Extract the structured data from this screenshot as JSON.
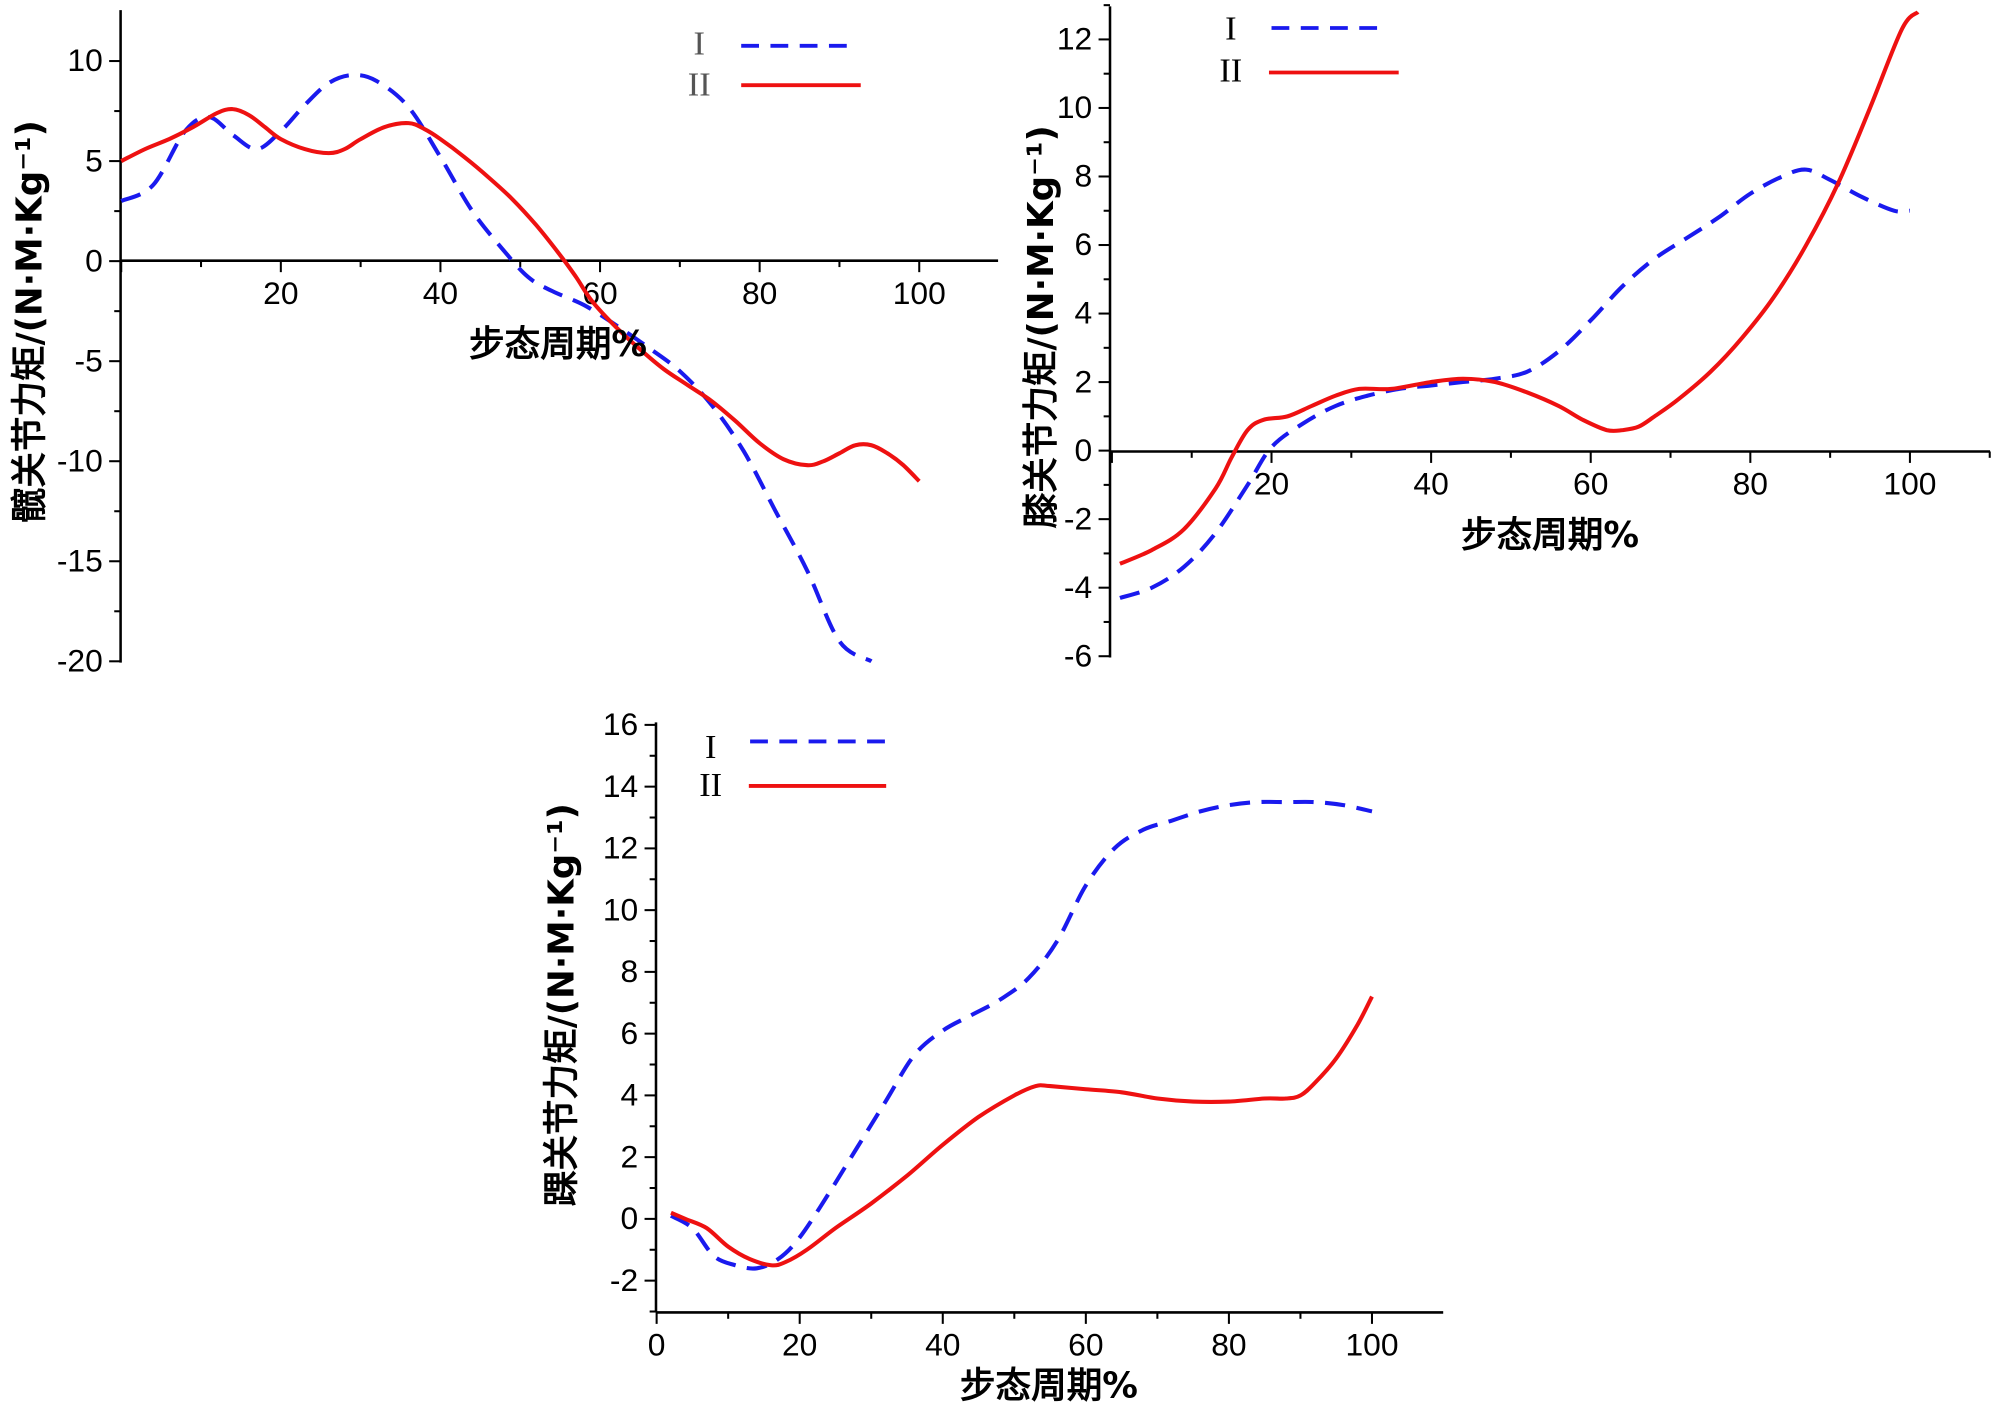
{
  "chart_data": [
    {
      "type": "line",
      "title": "",
      "xlabel": "步态周期%",
      "ylabel": "髋关节力矩/(N·M·Kg⁻¹)",
      "xlim": [
        0,
        110
      ],
      "ylim": [
        -20,
        12
      ],
      "xticks": [
        20,
        40,
        60,
        80,
        100
      ],
      "yticks": [
        10,
        5,
        0,
        -5,
        -10,
        -15,
        -20
      ],
      "ytick_labels": [
        "10",
        "5",
        "0",
        "-5",
        "-10",
        "-15",
        "-20"
      ],
      "legend": "top-right",
      "series": [
        {
          "name": "I",
          "style": "dashed",
          "color": "#1a1aee",
          "x": [
            0,
            4,
            8,
            11,
            14,
            17,
            20,
            23,
            26,
            29,
            32,
            36,
            40,
            44,
            48,
            51,
            54,
            58,
            62,
            66,
            70,
            74,
            78,
            82,
            86,
            90,
            94
          ],
          "y": [
            3.0,
            3.8,
            6.5,
            7.2,
            6.3,
            5.6,
            6.5,
            7.8,
            8.9,
            9.3,
            9.0,
            7.7,
            5.2,
            2.5,
            0.5,
            -0.8,
            -1.5,
            -2.2,
            -3.2,
            -4.3,
            -5.5,
            -7.2,
            -9.5,
            -12.5,
            -15.5,
            -19,
            -20
          ]
        },
        {
          "name": "II",
          "style": "solid",
          "color": "#ee1111",
          "x": [
            0,
            3,
            6,
            9,
            12,
            14,
            16,
            18,
            20,
            23,
            26,
            28,
            30,
            33,
            36,
            38,
            40,
            43,
            46,
            49,
            52,
            55,
            57,
            59,
            62,
            65,
            68,
            71,
            74,
            77,
            80,
            83,
            86,
            88,
            90,
            92,
            94,
            96,
            98,
            100
          ],
          "y": [
            5.0,
            5.6,
            6.1,
            6.7,
            7.4,
            7.6,
            7.3,
            6.7,
            6.1,
            5.6,
            5.4,
            5.6,
            6.1,
            6.7,
            6.9,
            6.6,
            6.1,
            5.2,
            4.2,
            3.1,
            1.8,
            0.3,
            -0.8,
            -2.0,
            -3.3,
            -4.4,
            -5.4,
            -6.2,
            -7.0,
            -8.0,
            -9.1,
            -9.9,
            -10.2,
            -10.0,
            -9.6,
            -9.2,
            -9.2,
            -9.6,
            -10.2,
            -11.0
          ]
        }
      ]
    },
    {
      "type": "line",
      "title": "",
      "xlabel": "步态周期%",
      "ylabel": "膝关节力矩/(N·M·Kg⁻¹)",
      "xlim": [
        0,
        110
      ],
      "ylim": [
        -6,
        13
      ],
      "xticks": [
        20,
        40,
        60,
        80,
        100
      ],
      "yticks": [
        12,
        10,
        8,
        6,
        4,
        2,
        0,
        -2,
        -4,
        -6
      ],
      "ytick_labels": [
        "12",
        "10",
        "8",
        "6",
        "4",
        "2",
        "0",
        "-2",
        "-4",
        "-6"
      ],
      "legend": "top-left",
      "series": [
        {
          "name": "I",
          "style": "dashed",
          "color": "#1a1aee",
          "x": [
            1,
            5,
            9,
            13,
            17,
            20,
            24,
            28,
            32,
            36,
            40,
            44,
            48,
            52,
            56,
            60,
            64,
            68,
            72,
            76,
            80,
            84,
            87,
            90,
            94,
            98,
            100
          ],
          "y": [
            -4.3,
            -4.0,
            -3.4,
            -2.4,
            -1.0,
            0.1,
            0.8,
            1.3,
            1.6,
            1.8,
            1.9,
            2.0,
            2.1,
            2.3,
            2.9,
            3.8,
            4.8,
            5.6,
            6.2,
            6.8,
            7.5,
            8.0,
            8.2,
            7.9,
            7.4,
            7.0,
            7.0
          ]
        },
        {
          "name": "II",
          "style": "solid",
          "color": "#ee1111",
          "x": [
            1,
            5,
            9,
            13,
            15,
            17,
            19,
            22,
            25,
            28,
            31,
            35,
            40,
            44,
            48,
            52,
            56,
            59,
            62,
            64,
            66,
            68,
            71,
            75,
            79,
            83,
            87,
            91,
            95,
            99,
            101
          ],
          "y": [
            -3.3,
            -2.9,
            -2.3,
            -1.1,
            -0.2,
            0.6,
            0.9,
            1.0,
            1.3,
            1.6,
            1.8,
            1.8,
            2.0,
            2.1,
            2.0,
            1.7,
            1.3,
            0.9,
            0.6,
            0.6,
            0.7,
            1.0,
            1.5,
            2.3,
            3.3,
            4.5,
            6.0,
            7.8,
            10.0,
            12.3,
            12.8
          ]
        }
      ]
    },
    {
      "type": "line",
      "title": "",
      "xlabel": "步态周期%",
      "ylabel": "踝关节力矩/(N·M·Kg⁻¹)",
      "xlim": [
        0,
        110
      ],
      "ylim": [
        -3,
        16
      ],
      "xticks": [
        0,
        20,
        40,
        60,
        80,
        100
      ],
      "yticks": [
        16,
        14,
        12,
        10,
        8,
        6,
        4,
        2,
        0,
        -2
      ],
      "ytick_labels": [
        "16",
        "14",
        "12",
        "10",
        "8",
        "6",
        "4",
        "2",
        "0",
        "-2"
      ],
      "legend": "top-left",
      "series": [
        {
          "name": "I",
          "style": "dashed",
          "color": "#1a1aee",
          "x": [
            2,
            5,
            8,
            11,
            14,
            17,
            20,
            24,
            28,
            32,
            36,
            40,
            44,
            48,
            52,
            56,
            60,
            64,
            68,
            72,
            76,
            80,
            84,
            88,
            92,
            96,
            100
          ],
          "y": [
            0.1,
            -0.3,
            -1.2,
            -1.5,
            -1.6,
            -1.3,
            -0.6,
            0.8,
            2.3,
            3.8,
            5.3,
            6.1,
            6.6,
            7.1,
            7.8,
            9.0,
            10.8,
            12.0,
            12.6,
            12.9,
            13.2,
            13.4,
            13.5,
            13.5,
            13.5,
            13.4,
            13.2
          ]
        },
        {
          "name": "II",
          "style": "solid",
          "color": "#ee1111",
          "x": [
            2,
            4,
            7,
            10,
            13,
            16,
            18,
            21,
            25,
            30,
            35,
            40,
            45,
            50,
            53,
            55,
            60,
            65,
            70,
            75,
            80,
            85,
            88,
            90,
            92,
            95,
            98,
            100
          ],
          "y": [
            0.2,
            0.0,
            -0.3,
            -0.9,
            -1.3,
            -1.5,
            -1.4,
            -1.0,
            -0.3,
            0.5,
            1.4,
            2.4,
            3.3,
            4.0,
            4.3,
            4.3,
            4.2,
            4.1,
            3.9,
            3.8,
            3.8,
            3.9,
            3.9,
            4.0,
            4.4,
            5.2,
            6.3,
            7.2
          ]
        }
      ]
    }
  ]
}
